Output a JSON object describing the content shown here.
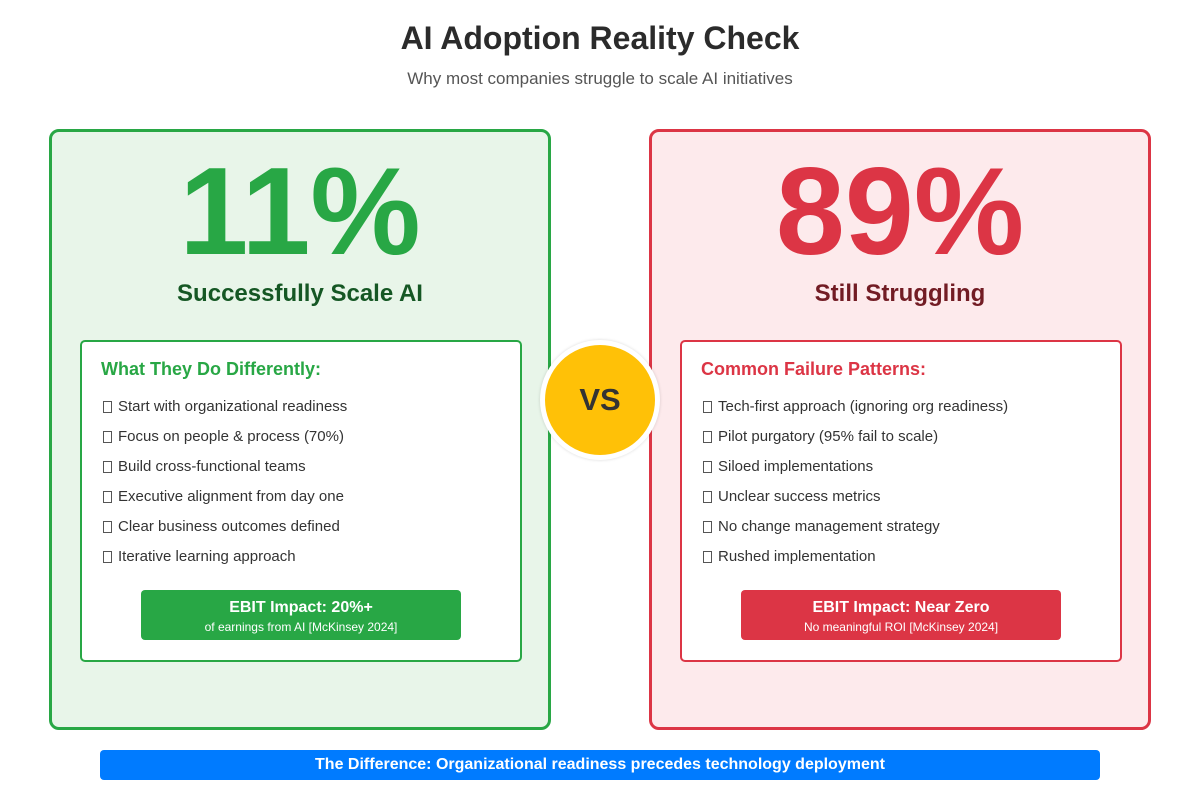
{
  "header": {
    "title": "AI Adoption Reality Check",
    "subtitle": "Why most companies struggle to scale AI initiatives"
  },
  "success_panel": {
    "percent": "11%",
    "label": "Successfully Scale AI",
    "heading": "What They Do Differently:",
    "items": [
      "Start with organizational readiness",
      "Focus on people & process (70%)",
      "Build cross-functional teams",
      "Executive alignment from day one",
      "Clear business outcomes defined",
      "Iterative learning approach"
    ],
    "ebit_title": "EBIT Impact: 20%+",
    "ebit_sub": "of earnings from AI [McKinsey 2024]"
  },
  "fail_panel": {
    "percent": "89%",
    "label": "Still Struggling",
    "heading": "Common Failure Patterns:",
    "items": [
      "Tech-first approach (ignoring org readiness)",
      "Pilot purgatory (95% fail to scale)",
      "Siloed implementations",
      "Unclear success metrics",
      "No change management strategy",
      "Rushed implementation"
    ],
    "ebit_title": "EBIT Impact: Near Zero",
    "ebit_sub": "No meaningful ROI [McKinsey 2024]"
  },
  "vs_label": "VS",
  "footer": {
    "banner": "The Difference: Organizational readiness precedes technology deployment"
  },
  "colors": {
    "success": "#28a745",
    "fail": "#dc3545",
    "vs": "#ffc107",
    "banner": "#007bff"
  }
}
